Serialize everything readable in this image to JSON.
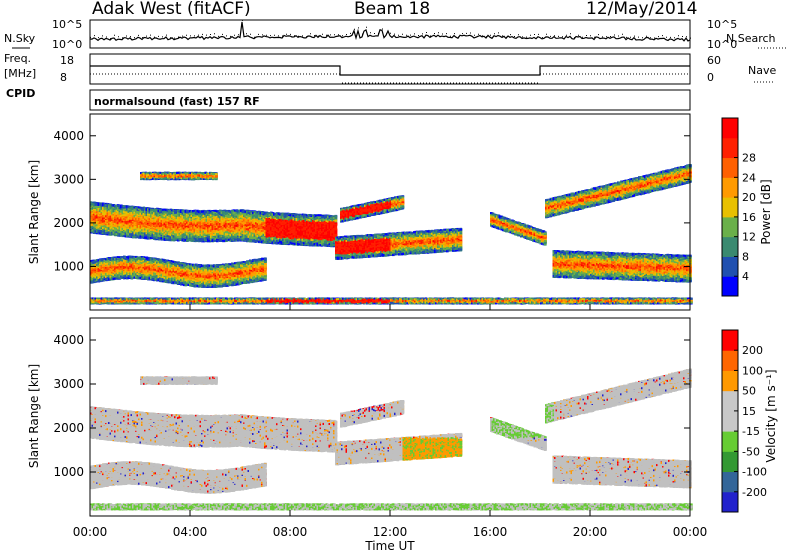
{
  "header": {
    "site": "Adak West (fitACF)",
    "beam": "Beam 18",
    "date": "12/May/2014"
  },
  "panel_labels": {
    "nsky": "N.Sky",
    "nsearch": "N.Search",
    "freq_top": "Freq.",
    "freq_unit": "[MHz]",
    "nave": "Nave",
    "cpid": "CPID",
    "cpid_text": "normalsound (fast) 157 RF"
  },
  "noise_axis": {
    "left_ticks": [
      "10^5",
      "10^0"
    ],
    "right_ticks": [
      "10^5",
      "10^0"
    ]
  },
  "freq_axis": {
    "left_ticks": [
      "18",
      "8"
    ],
    "right_ticks": [
      "60",
      "0"
    ]
  },
  "colors": {
    "power_scale": [
      "#0000ff",
      "#2050b0",
      "#3a8a70",
      "#6ab04a",
      "#e8c000",
      "#ff9a00",
      "#ff6000",
      "#ff2000",
      "#ff0000"
    ],
    "velocity_scale": [
      "#2222cc",
      "#336699",
      "#339933",
      "#66cc33",
      "#c8c8c8",
      "#c8c8c8",
      "#ff9900",
      "#ff6600",
      "#ff0000"
    ],
    "ground": "#c0c0c0"
  },
  "chart_data": [
    {
      "type": "heatmap",
      "name": "power",
      "ylabel": "Slant Range [km]",
      "yticks": [
        "1000",
        "2000",
        "3000",
        "4000"
      ],
      "ylim": [
        0,
        4500
      ],
      "colorbar_label": "Power [dB]",
      "colorbar_ticks": [
        "4",
        "8",
        "12",
        "16",
        "20",
        "24",
        "28"
      ],
      "xlim": [
        "00:00",
        "24:00"
      ]
    },
    {
      "type": "heatmap",
      "name": "velocity",
      "ylabel": "Slant Range [km]",
      "yticks": [
        "1000",
        "2000",
        "3000",
        "4000"
      ],
      "ylim": [
        0,
        4500
      ],
      "colorbar_label": "Velocity [m s⁻¹]",
      "colorbar_ticks": [
        "200",
        "100",
        "50",
        "15",
        "-15",
        "-50",
        "-100",
        "-200"
      ],
      "xlim": [
        "00:00",
        "24:00"
      ]
    }
  ],
  "xaxis": {
    "label": "Time UT",
    "ticks": [
      "00:00",
      "04:00",
      "08:00",
      "12:00",
      "16:00",
      "20:00",
      "00:00"
    ]
  }
}
